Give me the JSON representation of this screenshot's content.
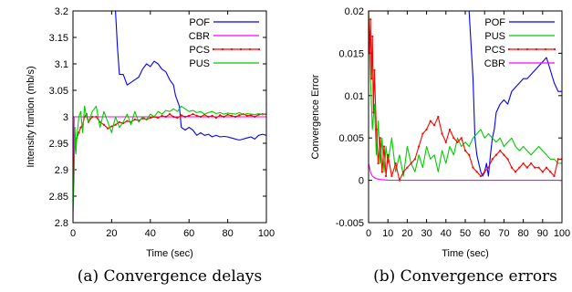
{
  "chart_data": [
    {
      "type": "line",
      "caption": "(a) Convergence delays",
      "xlabel": "Time (sec)",
      "ylabel": "Intensity funtion (mb/s)",
      "xlim": [
        0,
        100
      ],
      "ylim": [
        2.8,
        3.2
      ],
      "xticks": [
        0,
        20,
        40,
        60,
        80,
        100
      ],
      "yticks": [
        2.8,
        2.85,
        2.9,
        2.95,
        3,
        3.05,
        3.1,
        3.15,
        3.2
      ],
      "ytick_labels": [
        "2.8",
        "2.85",
        "2.9",
        "2.95",
        "3",
        "3.05",
        "3.1",
        "3.15",
        "3.2"
      ],
      "legend_position": "top-right",
      "series": [
        {
          "name": "POF",
          "color": "#0000ff",
          "x": [
            20,
            22,
            23,
            24,
            26,
            28,
            30,
            32,
            34,
            36,
            38,
            40,
            42,
            44,
            46,
            48,
            50,
            52,
            53,
            54,
            55,
            56,
            58,
            60,
            62,
            64,
            66,
            68,
            70,
            72,
            74,
            76,
            78,
            80,
            82,
            84,
            86,
            88,
            90,
            92,
            94,
            96,
            98,
            100
          ],
          "y": [
            3.25,
            3.2,
            3.13,
            3.08,
            3.08,
            3.06,
            3.065,
            3.07,
            3.075,
            3.09,
            3.1,
            3.095,
            3.105,
            3.1,
            3.09,
            3.085,
            3.07,
            3.06,
            3.04,
            3.03,
            3.02,
            2.98,
            2.975,
            2.98,
            2.975,
            2.965,
            2.97,
            2.965,
            2.967,
            2.962,
            2.965,
            2.962,
            2.963,
            2.962,
            2.96,
            2.958,
            2.956,
            2.958,
            2.96,
            2.962,
            2.958,
            2.965,
            2.967,
            2.965
          ]
        },
        {
          "name": "CBR",
          "color": "#ff00ff",
          "x": [
            0,
            0.3,
            0.6,
            1,
            3,
            100
          ],
          "y": [
            2.8,
            2.9,
            3.0,
            3.0,
            3.0,
            3.0
          ]
        },
        {
          "name": "PCS",
          "color": "#ff0000",
          "x": [
            0,
            1,
            2,
            3,
            4,
            5,
            6,
            7,
            8,
            10,
            12,
            14,
            16,
            18,
            20,
            22,
            24,
            26,
            28,
            30,
            32,
            34,
            36,
            38,
            40,
            42,
            44,
            46,
            48,
            50,
            52,
            54,
            56,
            58,
            60,
            62,
            64,
            66,
            68,
            70,
            72,
            74,
            76,
            78,
            80,
            82,
            84,
            86,
            88,
            90,
            92,
            94,
            96,
            98,
            100
          ],
          "y": [
            2.89,
            2.95,
            2.96,
            2.97,
            2.98,
            2.985,
            3.0,
            3.005,
            2.99,
            3.0,
            3.0,
            2.99,
            2.985,
            2.978,
            2.982,
            2.985,
            2.99,
            2.988,
            2.992,
            2.99,
            2.995,
            2.993,
            2.997,
            2.995,
            2.998,
            3.0,
            2.998,
            3.002,
            3.0,
            3.005,
            3.0,
            2.998,
            3.003,
            3.0,
            3.002,
            3.005,
            3.002,
            3.0,
            3.004,
            3.0,
            3.002,
            2.998,
            3.003,
            3.0,
            3.004,
            3.002,
            3.0,
            3.003,
            3.005,
            3.002,
            3.003,
            3.0,
            3.004,
            3.005,
            3.005
          ]
        },
        {
          "name": "PUS",
          "color": "#00cc00",
          "x": [
            0,
            0.5,
            1,
            1.5,
            2,
            3,
            4,
            5,
            6,
            7,
            8,
            9,
            10,
            12,
            14,
            16,
            18,
            20,
            22,
            24,
            26,
            28,
            30,
            32,
            34,
            36,
            38,
            40,
            42,
            44,
            46,
            48,
            50,
            52,
            54,
            56,
            58,
            60,
            62,
            64,
            66,
            68,
            70,
            72,
            74,
            76,
            78,
            80,
            82,
            84,
            86,
            88,
            90,
            92,
            94,
            96,
            98,
            100
          ],
          "y": [
            2.82,
            2.88,
            2.98,
            2.93,
            2.96,
            3.0,
            3.01,
            2.97,
            3.02,
            3.0,
            2.99,
            3.0,
            3.01,
            3.02,
            2.98,
            3.01,
            2.99,
            2.97,
            3.0,
            2.98,
            2.99,
            3.005,
            2.985,
            3.01,
            2.99,
            3.0,
            2.995,
            3.005,
            3.0,
            3.01,
            3.005,
            3.012,
            3.01,
            3.015,
            3.01,
            3.02,
            3.015,
            3.01,
            3.012,
            3.008,
            3.01,
            3.005,
            3.008,
            3.01,
            3.006,
            3.008,
            3.005,
            3.007,
            3.006,
            3.005,
            3.008,
            3.004,
            3.006,
            3.005,
            3.004,
            3.006,
            3.004,
            3.005
          ]
        }
      ]
    },
    {
      "type": "line",
      "caption": "(b) Convergence errors",
      "xlabel": "Time (sec)",
      "ylabel": "Convergence Error",
      "xlim": [
        0,
        100
      ],
      "ylim": [
        -0.005,
        0.02
      ],
      "xticks": [
        0,
        10,
        20,
        30,
        40,
        50,
        60,
        70,
        80,
        90,
        100
      ],
      "yticks": [
        -0.005,
        0,
        0.005,
        0.01,
        0.015,
        0.02
      ],
      "ytick_labels": [
        "-0.005",
        "0",
        "0.005",
        "0.01",
        "0.015",
        "0.02"
      ],
      "legend_position": "top-right",
      "series": [
        {
          "name": "POF",
          "color": "#0000ff",
          "x": [
            50,
            52,
            54,
            55,
            56,
            57,
            58,
            59,
            60,
            61,
            62,
            63,
            64,
            65,
            66,
            68,
            70,
            72,
            74,
            76,
            78,
            80,
            82,
            84,
            86,
            88,
            90,
            92,
            94,
            96,
            98,
            100
          ],
          "y": [
            0.021,
            0.02,
            0.012,
            0.005,
            0.003,
            0.002,
            0.001,
            0.0005,
            0.001,
            0.002,
            0.0005,
            0.003,
            0.005,
            0.006,
            0.008,
            0.009,
            0.0095,
            0.009,
            0.0105,
            0.011,
            0.0115,
            0.012,
            0.012,
            0.0125,
            0.013,
            0.0135,
            0.014,
            0.0145,
            0.013,
            0.0115,
            0.0105,
            0.0105
          ]
        },
        {
          "name": "PUS",
          "color": "#00cc00",
          "x": [
            0,
            1,
            2,
            3,
            4,
            5,
            6,
            7,
            8,
            9,
            10,
            12,
            14,
            16,
            18,
            20,
            22,
            24,
            26,
            28,
            30,
            32,
            34,
            36,
            38,
            40,
            42,
            44,
            46,
            48,
            50,
            52,
            54,
            56,
            58,
            60,
            62,
            64,
            66,
            68,
            70,
            72,
            74,
            76,
            78,
            80,
            82,
            84,
            86,
            88,
            90,
            92,
            94,
            96,
            98,
            100
          ],
          "y": [
            0.02,
            0.012,
            0.006,
            0.009,
            0.003,
            0.007,
            0.002,
            0.005,
            0.001,
            0.004,
            0.002,
            0.005,
            0.001,
            0.003,
            0.0005,
            0.004,
            0.002,
            0.001,
            0.003,
            0.0015,
            0.004,
            0.0025,
            0.003,
            0.001,
            0.0035,
            0.002,
            0.004,
            0.003,
            0.005,
            0.004,
            0.0045,
            0.004,
            0.005,
            0.0055,
            0.006,
            0.005,
            0.0055,
            0.005,
            0.0045,
            0.005,
            0.004,
            0.0045,
            0.005,
            0.004,
            0.0035,
            0.004,
            0.0035,
            0.003,
            0.0035,
            0.004,
            0.0035,
            0.003,
            0.0025,
            0.0025,
            0.002,
            0.002
          ]
        },
        {
          "name": "PCS",
          "color": "#ff0000",
          "x": [
            0,
            0.5,
            1,
            1.5,
            2,
            2.5,
            3,
            4,
            5,
            6,
            7,
            8,
            9,
            10,
            12,
            14,
            16,
            18,
            20,
            22,
            24,
            26,
            28,
            30,
            32,
            34,
            36,
            38,
            40,
            42,
            44,
            46,
            48,
            50,
            52,
            54,
            56,
            58,
            60,
            62,
            64,
            66,
            68,
            70,
            72,
            74,
            76,
            78,
            80,
            82,
            84,
            86,
            88,
            90,
            92,
            94,
            96,
            98,
            100
          ],
          "y": [
            0.02,
            0.015,
            0.019,
            0.012,
            0.017,
            0.008,
            0.013,
            0.006,
            0.002,
            0.005,
            0.001,
            0.004,
            0.0005,
            0.003,
            0.0005,
            0.002,
            0.0,
            0.001,
            0.0015,
            0.002,
            0.0025,
            0.004,
            0.0055,
            0.006,
            0.007,
            0.0065,
            0.0075,
            0.0055,
            0.0045,
            0.006,
            0.005,
            0.0045,
            0.005,
            0.0035,
            0.003,
            0.0015,
            0.001,
            0.0005,
            0.001,
            0.0015,
            0.0025,
            0.003,
            0.0035,
            0.003,
            0.0025,
            0.0015,
            0.001,
            0.0015,
            0.002,
            0.0015,
            0.002,
            0.0015,
            0.0015,
            0.001,
            0.0015,
            0.001,
            0.0005,
            0.0025,
            0.0025
          ]
        },
        {
          "name": "CBR",
          "color": "#ff00ff",
          "x": [
            0,
            0.5,
            1,
            1.5,
            2,
            3,
            4,
            6,
            8,
            10,
            14,
            20,
            30,
            100
          ],
          "y": [
            0.002,
            0.0015,
            0.001,
            0.0007,
            0.0005,
            0.0003,
            0.0002,
            0.0001,
            5e-05,
            2e-05,
            1e-05,
            0.0,
            0.0,
            0.0
          ]
        }
      ]
    }
  ]
}
